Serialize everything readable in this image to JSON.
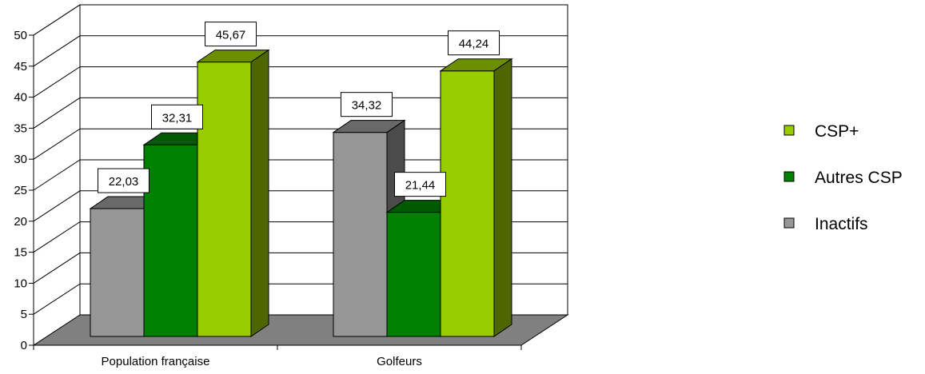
{
  "chart_data": {
    "type": "bar",
    "categories": [
      "Population française",
      "Golfeurs"
    ],
    "series": [
      {
        "name": "Inactifs",
        "values": [
          22.03,
          34.32
        ],
        "labels": [
          "22,03",
          "34,32"
        ],
        "color": "#969696"
      },
      {
        "name": "Autres CSP",
        "values": [
          32.31,
          21.44
        ],
        "labels": [
          "32,31",
          "21,44"
        ],
        "color": "#008000"
      },
      {
        "name": "CSP+",
        "values": [
          45.67,
          44.24
        ],
        "labels": [
          "45,67",
          "44,24"
        ],
        "color": "#99cc00"
      }
    ],
    "legend_order": [
      "CSP+",
      "Autres CSP",
      "Inactifs"
    ],
    "legend_position": "right",
    "ylim": [
      0,
      50
    ],
    "yticks": [
      0,
      5,
      10,
      15,
      20,
      25,
      30,
      35,
      40,
      45,
      50
    ],
    "grid": true,
    "three_d": true,
    "title": "",
    "xlabel": "",
    "ylabel": ""
  }
}
